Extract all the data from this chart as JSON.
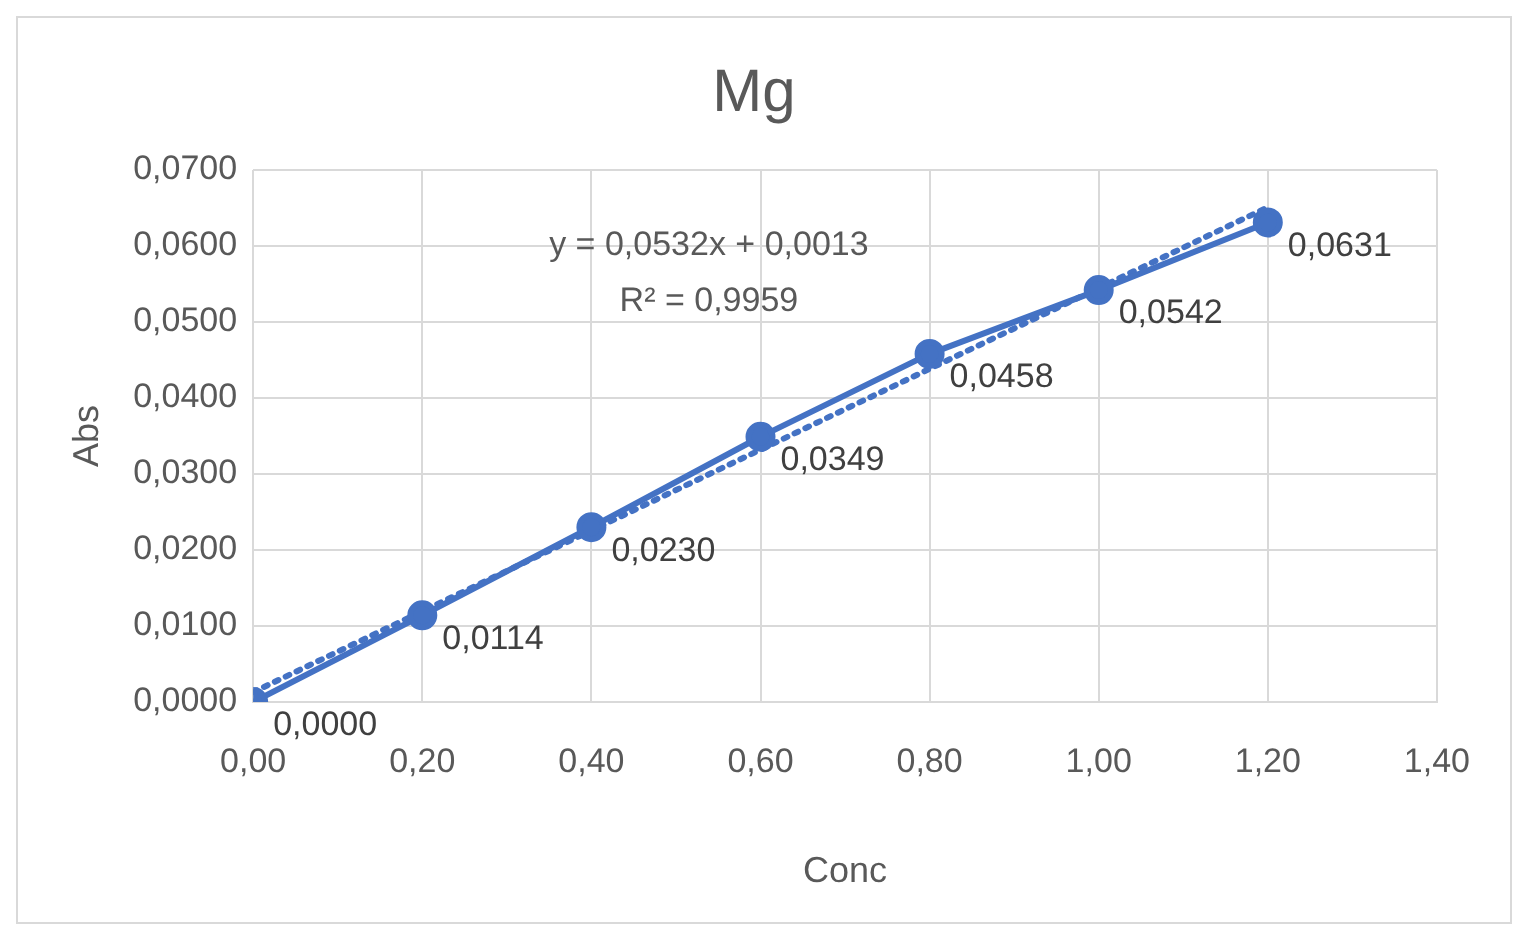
{
  "chart_data": {
    "type": "line",
    "title": "Mg",
    "xlabel": "Conc",
    "ylabel": "Abs",
    "x": [
      0,
      0.2,
      0.4,
      0.6,
      0.8,
      1.0,
      1.2
    ],
    "series": [
      {
        "color": "#4472c4",
        "values": [
          0,
          0.0114,
          0.023,
          0.0349,
          0.0458,
          0.0542,
          0.0631
        ],
        "value_labels": [
          "0,0000",
          "0,0114",
          "0,0230",
          "0,0349",
          "0,0458",
          "0,0542",
          "0,0631"
        ],
        "marker": "circle",
        "line_style": "solid"
      },
      {
        "color": "#4472c4",
        "x": [
          0,
          1.2
        ],
        "values": [
          0.0013,
          0.0651
        ],
        "marker": "none",
        "line_style": "dotted"
      }
    ],
    "annotations": [
      "y = 0,0532x + 0,0013",
      "R² = 0,9959"
    ],
    "xlim": [
      0,
      1.4
    ],
    "xticks": [
      {
        "value": 0,
        "label": "0,00"
      },
      {
        "value": 0.2,
        "label": "0,20"
      },
      {
        "value": 0.4,
        "label": "0,40"
      },
      {
        "value": 0.6,
        "label": "0,60"
      },
      {
        "value": 0.8,
        "label": "0,80"
      },
      {
        "value": 1.0,
        "label": "1,00"
      },
      {
        "value": 1.2,
        "label": "1,20"
      },
      {
        "value": 1.4,
        "label": "1,40"
      }
    ],
    "ylim": [
      0,
      0.07
    ],
    "yticks": [
      {
        "value": 0,
        "label": "0,0000"
      },
      {
        "value": 0.01,
        "label": "0,0100"
      },
      {
        "value": 0.02,
        "label": "0,0200"
      },
      {
        "value": 0.03,
        "label": "0,0300"
      },
      {
        "value": 0.04,
        "label": "0,0400"
      },
      {
        "value": 0.05,
        "label": "0,0500"
      },
      {
        "value": 0.06,
        "label": "0,0600"
      },
      {
        "value": 0.07,
        "label": "0,0700"
      }
    ],
    "grid": true,
    "legend": false
  }
}
